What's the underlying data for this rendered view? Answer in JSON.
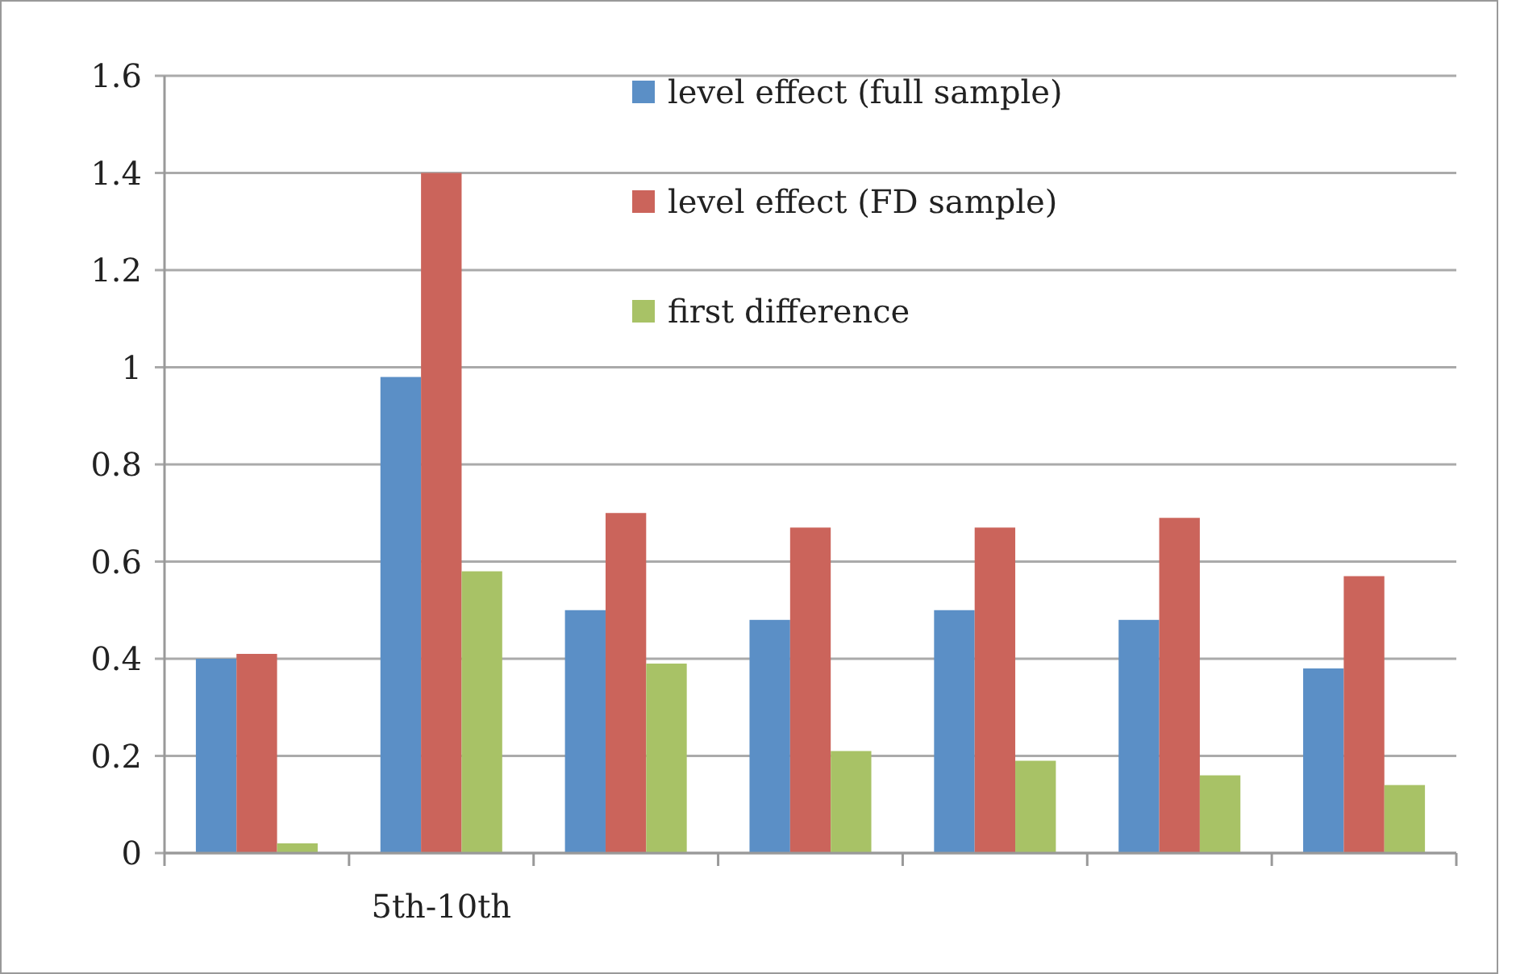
{
  "chart_data": {
    "type": "bar",
    "categories": [
      null,
      "5th-10th",
      null,
      null,
      null,
      null,
      null
    ],
    "series": [
      {
        "name": "level effect (full sample)",
        "color": "#5b8fc6",
        "values": [
          0.4,
          0.98,
          0.5,
          0.48,
          0.5,
          0.48,
          0.38
        ]
      },
      {
        "name": "level effect (FD sample)",
        "color": "#cb645b",
        "values": [
          0.41,
          1.4,
          0.7,
          0.67,
          0.67,
          0.69,
          0.57
        ]
      },
      {
        "name": "first difference",
        "color": "#a8c266",
        "values": [
          0.02,
          0.58,
          0.39,
          0.21,
          0.19,
          0.16,
          0.14
        ]
      }
    ],
    "ylim": [
      0,
      1.6
    ],
    "yticks": [
      0,
      0.2,
      0.4,
      0.6,
      0.8,
      1,
      1.2,
      1.4,
      1.6
    ],
    "grid": "y",
    "legend": "top"
  }
}
